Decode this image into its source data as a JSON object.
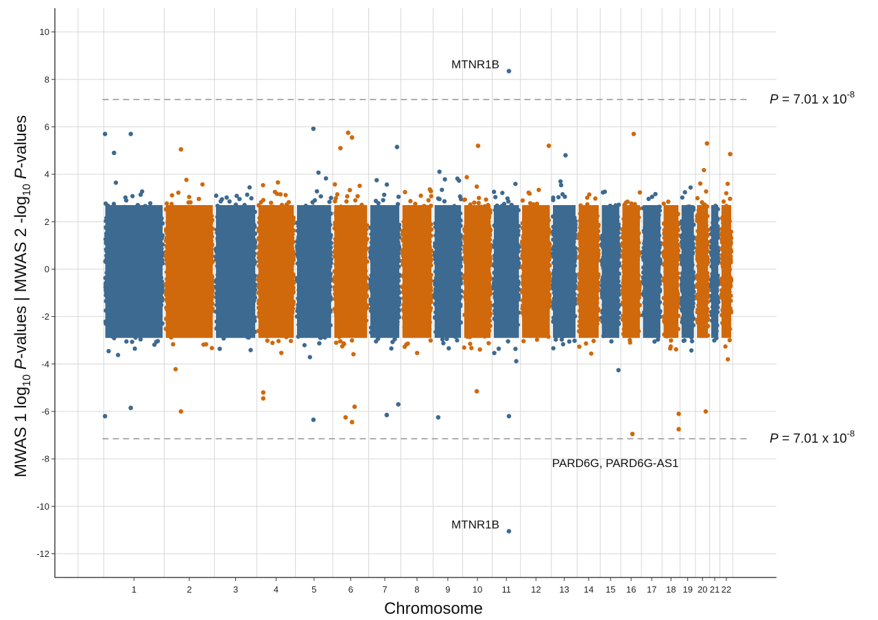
{
  "chart_data": {
    "type": "scatter",
    "subtype": "miami-manhattan",
    "xlabel": "Chromosome",
    "ylabel_parts": {
      "bottom_prefix": "MWAS 1 log",
      "bottom_sub": "10",
      "bottom_italic": "P",
      "bottom_suffix": "-values",
      "separator": "|",
      "top_prefix": "MWAS 2 -log",
      "top_sub": "10",
      "top_italic": "P",
      "top_suffix": "-values"
    },
    "ylim": [
      -13,
      11
    ],
    "yticks": [
      10,
      8,
      6,
      4,
      2,
      0,
      -2,
      -4,
      -6,
      -8,
      -10,
      -12
    ],
    "grid": true,
    "colors": {
      "odd": "#3d6a91",
      "even": "#d0690c",
      "threshold": "#999999"
    },
    "chromosomes": [
      {
        "label": "1",
        "start": 0.0,
        "end": 2.35
      },
      {
        "label": "2",
        "start": 2.35,
        "end": 4.3
      },
      {
        "label": "3",
        "start": 4.3,
        "end": 5.95
      },
      {
        "label": "4",
        "start": 5.95,
        "end": 7.45
      },
      {
        "label": "5",
        "start": 7.45,
        "end": 8.9
      },
      {
        "label": "6",
        "start": 8.9,
        "end": 10.3
      },
      {
        "label": "7",
        "start": 10.3,
        "end": 11.55
      },
      {
        "label": "8",
        "start": 11.55,
        "end": 12.8
      },
      {
        "label": "9",
        "start": 12.8,
        "end": 13.95
      },
      {
        "label": "10",
        "start": 13.95,
        "end": 15.1
      },
      {
        "label": "11",
        "start": 15.1,
        "end": 16.2
      },
      {
        "label": "12",
        "start": 16.2,
        "end": 17.4
      },
      {
        "label": "13",
        "start": 17.4,
        "end": 18.4
      },
      {
        "label": "14",
        "start": 18.4,
        "end": 19.3
      },
      {
        "label": "15",
        "start": 19.3,
        "end": 20.1
      },
      {
        "label": "16",
        "start": 20.1,
        "end": 20.9
      },
      {
        "label": "17",
        "start": 20.9,
        "end": 21.7
      },
      {
        "label": "18",
        "start": 21.7,
        "end": 22.4
      },
      {
        "label": "19",
        "start": 22.4,
        "end": 23.0
      },
      {
        "label": "20",
        "start": 23.0,
        "end": 23.55
      },
      {
        "label": "21",
        "start": 23.55,
        "end": 23.95
      },
      {
        "label": "22",
        "start": 23.95,
        "end": 24.45
      }
    ],
    "thresholds": [
      {
        "y": 7.15,
        "label_prefix": "P",
        "label_mid": " = 7.01 x 10",
        "label_exp": "-8"
      },
      {
        "y": -7.15,
        "label_prefix": "P",
        "label_mid": " = 7.01 x 10",
        "label_exp": "-8"
      }
    ],
    "annotations": [
      {
        "text": "MTNR1B",
        "x": 15.75,
        "y": 8.35
      },
      {
        "text": "PARD6G, PARD6G-AS1",
        "x": 22.35,
        "y": -7.3
      },
      {
        "text": "MTNR1B",
        "x": 15.75,
        "y": -11.05
      }
    ],
    "highlight_points": [
      {
        "x": 15.75,
        "y": 8.35,
        "chrom": "11"
      },
      {
        "x": 15.75,
        "y": -11.05,
        "chrom": "11"
      },
      {
        "x": 0.05,
        "y": 5.7,
        "chrom": "1"
      },
      {
        "x": 1.05,
        "y": 5.7,
        "chrom": "1"
      },
      {
        "x": 0.4,
        "y": 4.9,
        "chrom": "1"
      },
      {
        "x": 3.0,
        "y": 5.05,
        "chrom": "2"
      },
      {
        "x": 8.15,
        "y": 5.92,
        "chrom": "5"
      },
      {
        "x": 9.5,
        "y": 5.75,
        "chrom": "6"
      },
      {
        "x": 9.65,
        "y": 5.55,
        "chrom": "6"
      },
      {
        "x": 9.2,
        "y": 5.1,
        "chrom": "6"
      },
      {
        "x": 11.4,
        "y": 5.15,
        "chrom": "7"
      },
      {
        "x": 14.55,
        "y": 5.2,
        "chrom": "10"
      },
      {
        "x": 17.3,
        "y": 5.2,
        "chrom": "12"
      },
      {
        "x": 17.95,
        "y": 4.8,
        "chrom": "13"
      },
      {
        "x": 20.6,
        "y": 5.7,
        "chrom": "16"
      },
      {
        "x": 23.45,
        "y": 5.3,
        "chrom": "20"
      },
      {
        "x": 24.35,
        "y": 4.85,
        "chrom": "22"
      },
      {
        "x": 0.05,
        "y": -6.2,
        "chrom": "1"
      },
      {
        "x": 1.05,
        "y": -5.85,
        "chrom": "1"
      },
      {
        "x": 3.0,
        "y": -6.0,
        "chrom": "2"
      },
      {
        "x": 6.2,
        "y": -5.2,
        "chrom": "4"
      },
      {
        "x": 6.2,
        "y": -5.45,
        "chrom": "4"
      },
      {
        "x": 8.15,
        "y": -6.35,
        "chrom": "5"
      },
      {
        "x": 9.4,
        "y": -6.25,
        "chrom": "6"
      },
      {
        "x": 9.65,
        "y": -6.45,
        "chrom": "6"
      },
      {
        "x": 9.75,
        "y": -5.8,
        "chrom": "6"
      },
      {
        "x": 11.0,
        "y": -6.15,
        "chrom": "7"
      },
      {
        "x": 11.45,
        "y": -5.7,
        "chrom": "7"
      },
      {
        "x": 13.0,
        "y": -6.25,
        "chrom": "9"
      },
      {
        "x": 14.5,
        "y": -5.15,
        "chrom": "10"
      },
      {
        "x": 15.75,
        "y": -6.2,
        "chrom": "11"
      },
      {
        "x": 20.55,
        "y": -6.95,
        "chrom": "16"
      },
      {
        "x": 22.35,
        "y": -6.1,
        "chrom": "18"
      },
      {
        "x": 22.35,
        "y": -6.75,
        "chrom": "18"
      },
      {
        "x": 23.4,
        "y": -6.0,
        "chrom": "20"
      }
    ]
  }
}
